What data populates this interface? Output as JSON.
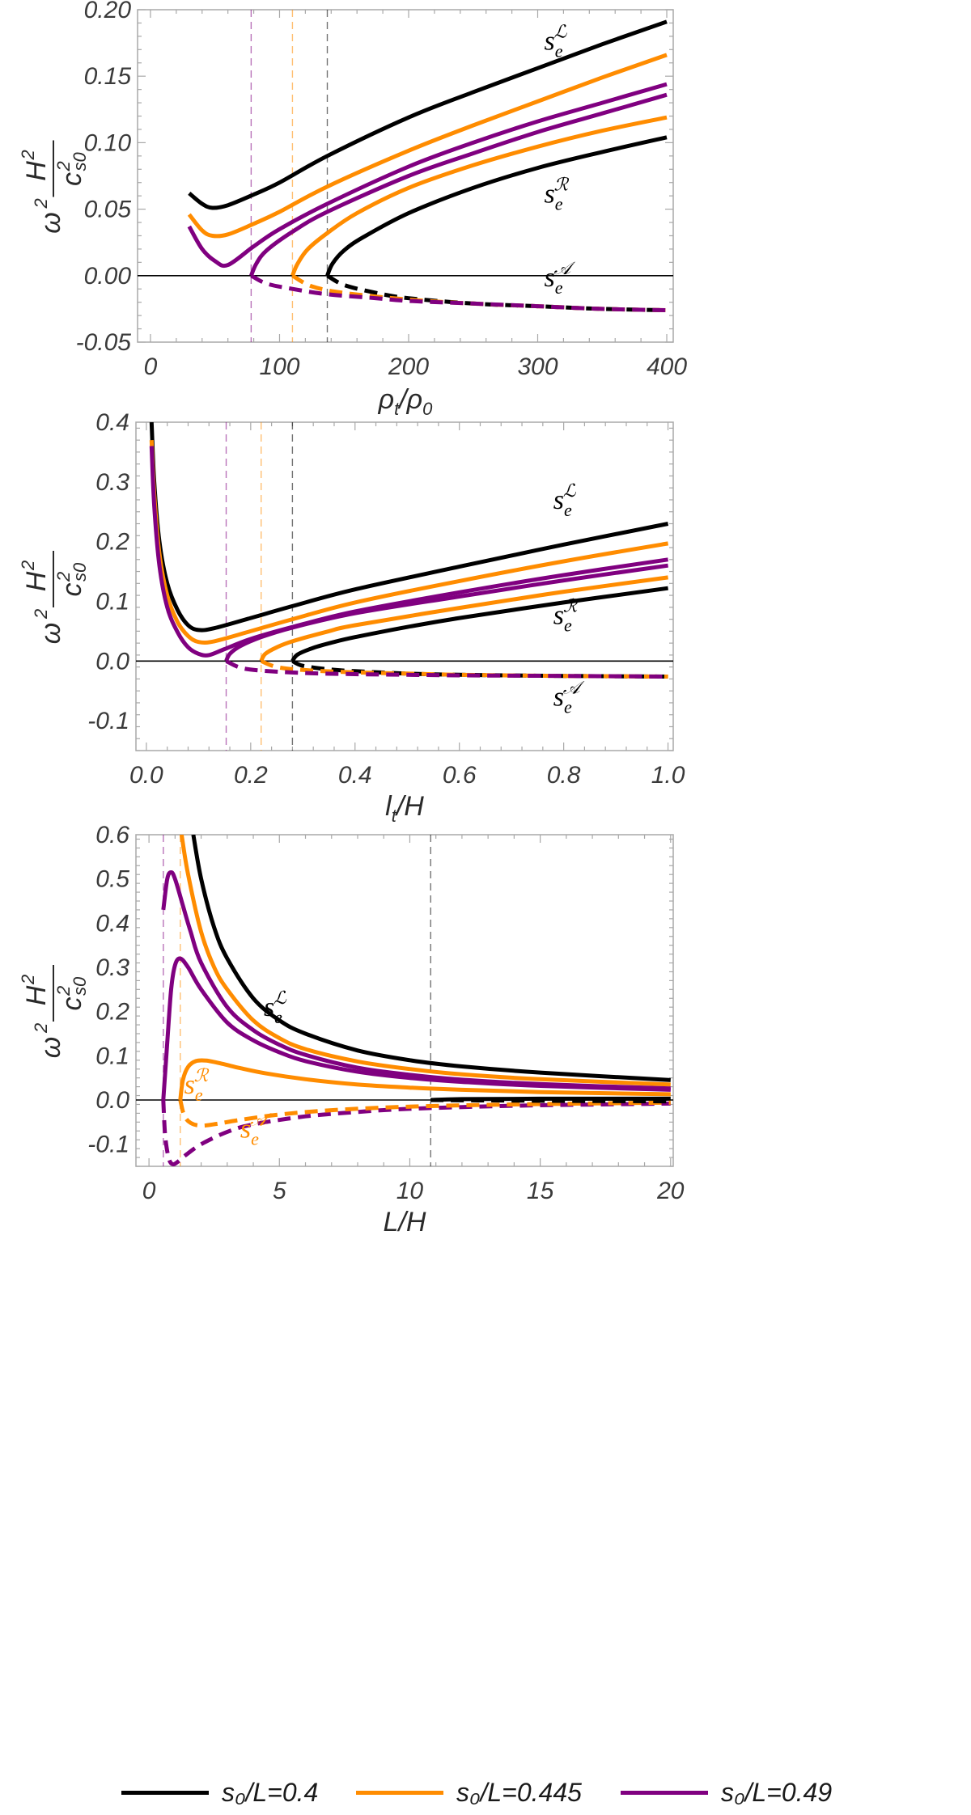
{
  "colors": {
    "black": "#000000",
    "orange": "#ff8c00",
    "purple": "#800080",
    "frame": "#a8a8a8",
    "text": "#333333"
  },
  "legend": [
    {
      "label": "s₀/L=0.4",
      "color": "#000000"
    },
    {
      "label": "s₀/L=0.445",
      "color": "#ff8c00"
    },
    {
      "label": "s₀/L=0.49",
      "color": "#800080"
    }
  ],
  "chart_data": [
    {
      "type": "line",
      "title": "",
      "xlabel": "ρt/ρ0",
      "ylabel": "ω² H²/c²s0",
      "xlim": [
        -10,
        405
      ],
      "ylim": [
        -0.05,
        0.2
      ],
      "xticks": [
        0,
        100,
        200,
        300,
        400
      ],
      "xtick_labels": [
        "0",
        "100",
        "200",
        "300",
        "400"
      ],
      "yticks": [
        -0.05,
        0,
        0.05,
        0.1,
        0.15,
        0.2
      ],
      "ytick_labels": [
        "-0.05",
        "0.00",
        "0.05",
        "0.10",
        "0.15",
        "0.20"
      ],
      "hline": 0,
      "vlines": [
        {
          "x": 137,
          "color": "#000000"
        },
        {
          "x": 110,
          "color": "#ff8c00"
        },
        {
          "x": 78,
          "color": "#800080"
        }
      ],
      "series": [
        {
          "name": "sL s0/L=0.4",
          "color": "#000000",
          "dashed": false,
          "x": [
            30,
            40,
            48,
            60,
            80,
            100,
            137,
            200,
            250,
            300,
            350,
            400
          ],
          "y": [
            0.062,
            0.054,
            0.051,
            0.053,
            0.061,
            0.07,
            0.09,
            0.119,
            0.138,
            0.156,
            0.174,
            0.191
          ]
        },
        {
          "name": "sL s0/L=0.445",
          "color": "#ff8c00",
          "dashed": false,
          "x": [
            30,
            40,
            48,
            60,
            80,
            100,
            137,
            200,
            250,
            300,
            350,
            400
          ],
          "y": [
            0.046,
            0.034,
            0.03,
            0.031,
            0.039,
            0.048,
            0.067,
            0.094,
            0.113,
            0.131,
            0.149,
            0.166
          ]
        },
        {
          "name": "sL s0/L=0.49",
          "color": "#800080",
          "dashed": false,
          "x": [
            30,
            40,
            50,
            60,
            80,
            100,
            137,
            200,
            250,
            300,
            350,
            400
          ],
          "y": [
            0.037,
            0.02,
            0.011,
            0.008,
            0.022,
            0.035,
            0.054,
            0.082,
            0.1,
            0.116,
            0.13,
            0.144
          ]
        },
        {
          "name": "sR s0/L=0.49",
          "color": "#800080",
          "dashed": false,
          "x": [
            78,
            82,
            90,
            110,
            137,
            200,
            250,
            300,
            350,
            400
          ],
          "y": [
            0.0,
            0.009,
            0.019,
            0.033,
            0.048,
            0.075,
            0.092,
            0.108,
            0.122,
            0.136
          ]
        },
        {
          "name": "sR s0/L=0.445",
          "color": "#ff8c00",
          "dashed": false,
          "x": [
            110,
            114,
            122,
            137,
            160,
            200,
            250,
            300,
            350,
            400
          ],
          "y": [
            0.0,
            0.009,
            0.02,
            0.032,
            0.047,
            0.066,
            0.083,
            0.097,
            0.109,
            0.119
          ]
        },
        {
          "name": "sR s0/L=0.4",
          "color": "#000000",
          "dashed": false,
          "x": [
            137,
            141,
            150,
            165,
            200,
            250,
            300,
            350,
            400
          ],
          "y": [
            0.0,
            0.009,
            0.019,
            0.029,
            0.047,
            0.066,
            0.081,
            0.093,
            0.104
          ]
        },
        {
          "name": "sA s0/L=0.4",
          "color": "#000000",
          "dashed": true,
          "x": [
            137,
            150,
            175,
            200,
            250,
            300,
            350,
            400
          ],
          "y": [
            0.0,
            -0.007,
            -0.013,
            -0.017,
            -0.021,
            -0.023,
            -0.025,
            -0.026
          ]
        },
        {
          "name": "sA s0/L=0.445",
          "color": "#ff8c00",
          "dashed": true,
          "x": [
            110,
            125,
            150,
            200,
            250,
            300,
            350,
            400
          ],
          "y": [
            0.0,
            -0.008,
            -0.013,
            -0.018,
            -0.021,
            -0.023,
            -0.025,
            -0.026
          ]
        },
        {
          "name": "sA s0/L=0.49",
          "color": "#800080",
          "dashed": true,
          "x": [
            78,
            90,
            110,
            137,
            175,
            200,
            250,
            300,
            350,
            400
          ],
          "y": [
            0.0,
            -0.006,
            -0.01,
            -0.014,
            -0.017,
            -0.019,
            -0.021,
            -0.023,
            -0.025,
            -0.026
          ]
        }
      ],
      "annotations": [
        {
          "text": "s",
          "sub": "e",
          "sup": "ℒ",
          "x": 305,
          "y": 0.17,
          "color": "#000000"
        },
        {
          "text": "s",
          "sub": "e",
          "sup": "ℛ",
          "x": 305,
          "y": 0.055,
          "color": "#000000"
        },
        {
          "text": "s",
          "sub": "e",
          "sup": "𝒜",
          "x": 305,
          "y": -0.008,
          "color": "#000000"
        }
      ]
    },
    {
      "type": "line",
      "title": "",
      "xlabel": "lt/H",
      "ylabel": "ω² H²/c²s0",
      "xlim": [
        -0.02,
        1.01
      ],
      "ylim": [
        -0.15,
        0.4
      ],
      "xticks": [
        0,
        0.2,
        0.4,
        0.6,
        0.8,
        1.0
      ],
      "xtick_labels": [
        "0.0",
        "0.2",
        "0.4",
        "0.6",
        "0.8",
        "1.0"
      ],
      "yticks": [
        -0.1,
        0,
        0.1,
        0.2,
        0.3,
        0.4
      ],
      "ytick_labels": [
        "-0.1",
        "0.0",
        "0.1",
        "0.2",
        "0.3",
        "0.4"
      ],
      "hline": 0,
      "vlines": [
        {
          "x": 0.28,
          "color": "#000000"
        },
        {
          "x": 0.22,
          "color": "#ff8c00"
        },
        {
          "x": 0.153,
          "color": "#800080"
        }
      ],
      "series": [
        {
          "name": "sL s0/L=0.4",
          "color": "#000000",
          "dashed": false,
          "x": [
            0.01,
            0.015,
            0.025,
            0.04,
            0.06,
            0.08,
            0.1,
            0.13,
            0.2,
            0.28,
            0.4,
            0.6,
            0.8,
            1.0
          ],
          "y": [
            0.4,
            0.3,
            0.2,
            0.13,
            0.085,
            0.06,
            0.052,
            0.055,
            0.072,
            0.092,
            0.12,
            0.158,
            0.195,
            0.23
          ]
        },
        {
          "name": "sL s0/L=0.445",
          "color": "#ff8c00",
          "dashed": false,
          "x": [
            0.01,
            0.015,
            0.025,
            0.04,
            0.06,
            0.08,
            0.1,
            0.13,
            0.2,
            0.28,
            0.4,
            0.6,
            0.8,
            1.0
          ],
          "y": [
            0.37,
            0.28,
            0.18,
            0.11,
            0.065,
            0.042,
            0.032,
            0.033,
            0.05,
            0.07,
            0.098,
            0.134,
            0.167,
            0.197
          ]
        },
        {
          "name": "sL s0/L=0.49",
          "color": "#800080",
          "dashed": false,
          "x": [
            0.01,
            0.015,
            0.025,
            0.04,
            0.06,
            0.08,
            0.1,
            0.12,
            0.15,
            0.2,
            0.28,
            0.4,
            0.6,
            0.8,
            1.0
          ],
          "y": [
            0.36,
            0.26,
            0.16,
            0.09,
            0.048,
            0.023,
            0.012,
            0.01,
            0.02,
            0.037,
            0.057,
            0.083,
            0.115,
            0.144,
            0.17
          ]
        },
        {
          "name": "sR s0/L=0.49",
          "color": "#800080",
          "dashed": false,
          "x": [
            0.153,
            0.16,
            0.18,
            0.22,
            0.28,
            0.4,
            0.6,
            0.8,
            1.0
          ],
          "y": [
            0.0,
            0.012,
            0.025,
            0.04,
            0.056,
            0.08,
            0.108,
            0.135,
            0.16
          ]
        },
        {
          "name": "sR s0/L=0.445",
          "color": "#ff8c00",
          "dashed": false,
          "x": [
            0.22,
            0.228,
            0.25,
            0.28,
            0.35,
            0.4,
            0.6,
            0.8,
            1.0
          ],
          "y": [
            0.0,
            0.012,
            0.023,
            0.033,
            0.05,
            0.06,
            0.089,
            0.116,
            0.14
          ]
        },
        {
          "name": "sR s0/L=0.4",
          "color": "#000000",
          "dashed": false,
          "x": [
            0.28,
            0.29,
            0.32,
            0.36,
            0.4,
            0.5,
            0.6,
            0.8,
            1.0
          ],
          "y": [
            0.0,
            0.011,
            0.022,
            0.032,
            0.04,
            0.057,
            0.072,
            0.098,
            0.122
          ]
        },
        {
          "name": "sA s0/L=0.4",
          "color": "#000000",
          "dashed": true,
          "x": [
            0.28,
            0.3,
            0.35,
            0.4,
            0.5,
            0.6,
            0.8,
            1.0
          ],
          "y": [
            0.0,
            -0.008,
            -0.014,
            -0.017,
            -0.021,
            -0.023,
            -0.025,
            -0.026
          ]
        },
        {
          "name": "sA s0/L=0.445",
          "color": "#ff8c00",
          "dashed": true,
          "x": [
            0.22,
            0.25,
            0.3,
            0.4,
            0.5,
            0.6,
            0.8,
            1.0
          ],
          "y": [
            0.0,
            -0.01,
            -0.015,
            -0.019,
            -0.021,
            -0.023,
            -0.025,
            -0.026
          ]
        },
        {
          "name": "sA s0/L=0.49",
          "color": "#800080",
          "dashed": true,
          "x": [
            0.153,
            0.18,
            0.22,
            0.3,
            0.4,
            0.5,
            0.6,
            0.8,
            1.0
          ],
          "y": [
            0.0,
            -0.011,
            -0.016,
            -0.02,
            -0.022,
            -0.023,
            -0.024,
            -0.025,
            -0.026
          ]
        }
      ],
      "annotations": [
        {
          "text": "s",
          "sub": "e",
          "sup": "ℒ",
          "x": 0.78,
          "y": 0.255,
          "color": "#000000"
        },
        {
          "text": "s",
          "sub": "e",
          "sup": "ℛ",
          "x": 0.78,
          "y": 0.062,
          "color": "#000000"
        },
        {
          "text": "s",
          "sub": "e",
          "sup": "𝒜",
          "x": 0.78,
          "y": -0.075,
          "color": "#000000"
        }
      ]
    },
    {
      "type": "line",
      "title": "",
      "xlabel": "L/H",
      "ylabel": "ω² H²/c²s0",
      "xlim": [
        -0.5,
        20.1
      ],
      "ylim": [
        -0.15,
        0.6
      ],
      "xticks": [
        0,
        5,
        10,
        15,
        20
      ],
      "xtick_labels": [
        "0",
        "5",
        "10",
        "15",
        "20"
      ],
      "yticks": [
        -0.1,
        0,
        0.1,
        0.2,
        0.3,
        0.4,
        0.5,
        0.6
      ],
      "ytick_labels": [
        "-0.1",
        "0.0",
        "0.1",
        "0.2",
        "0.3",
        "0.4",
        "0.5",
        "0.6"
      ],
      "hline": 0,
      "vlines": [
        {
          "x": 10.8,
          "color": "#000000"
        },
        {
          "x": 1.2,
          "color": "#ff8c00"
        },
        {
          "x": 0.55,
          "color": "#800080"
        }
      ],
      "series": [
        {
          "name": "sL s0/L=0.4",
          "color": "#000000",
          "dashed": false,
          "x": [
            1.7,
            2,
            2.5,
            3,
            4,
            5,
            6,
            8,
            10,
            12,
            15,
            20
          ],
          "y": [
            0.6,
            0.5,
            0.39,
            0.32,
            0.23,
            0.18,
            0.15,
            0.112,
            0.09,
            0.076,
            0.062,
            0.045
          ]
        },
        {
          "name": "sL s0/L=0.445",
          "color": "#ff8c00",
          "dashed": false,
          "x": [
            1.25,
            1.5,
            2,
            2.5,
            3,
            4,
            5,
            6,
            8,
            10,
            12,
            15,
            20
          ],
          "y": [
            0.6,
            0.51,
            0.38,
            0.3,
            0.25,
            0.18,
            0.14,
            0.115,
            0.087,
            0.07,
            0.058,
            0.047,
            0.035
          ]
        },
        {
          "name": "sL s0/L=0.49 upper",
          "color": "#800080",
          "dashed": false,
          "x": [
            0.55,
            0.7,
            0.85,
            1.0,
            1.3,
            1.6,
            2,
            3,
            4,
            5,
            6,
            8,
            10,
            12,
            15,
            20
          ],
          "y": [
            0.43,
            0.5,
            0.515,
            0.5,
            0.44,
            0.38,
            0.31,
            0.21,
            0.158,
            0.125,
            0.102,
            0.073,
            0.057,
            0.046,
            0.036,
            0.026
          ]
        },
        {
          "name": "sL s0/L=0.49 lower",
          "color": "#800080",
          "dashed": false,
          "x": [
            0.55,
            0.7,
            0.85,
            1.0,
            1.2,
            1.5,
            2,
            3,
            4,
            5,
            6,
            8,
            10,
            12,
            15,
            20
          ],
          "y": [
            0.0,
            0.13,
            0.25,
            0.305,
            0.32,
            0.3,
            0.25,
            0.175,
            0.135,
            0.108,
            0.088,
            0.064,
            0.05,
            0.041,
            0.032,
            0.023
          ]
        },
        {
          "name": "sR s0/L=0.445",
          "color": "#ff8c00",
          "dashed": false,
          "x": [
            1.2,
            1.3,
            1.5,
            1.8,
            2.2,
            2.8,
            3.5,
            4.5,
            6,
            8,
            10,
            12,
            15,
            20
          ],
          "y": [
            0.0,
            0.045,
            0.075,
            0.088,
            0.089,
            0.082,
            0.072,
            0.06,
            0.047,
            0.035,
            0.028,
            0.023,
            0.018,
            0.013
          ]
        },
        {
          "name": "sR s0/L=0.4",
          "color": "#000000",
          "dashed": false,
          "x": [
            10.8,
            12,
            15,
            20
          ],
          "y": [
            0.0,
            0.002,
            0.003,
            0.003
          ]
        },
        {
          "name": "sA s0/L=0.49",
          "color": "#800080",
          "dashed": true,
          "x": [
            0.55,
            0.62,
            0.75,
            0.9,
            1.1,
            1.4,
            2,
            3,
            4,
            6,
            8,
            10,
            14,
            20
          ],
          "y": [
            0.0,
            -0.08,
            -0.13,
            -0.145,
            -0.14,
            -0.125,
            -0.1,
            -0.072,
            -0.055,
            -0.037,
            -0.027,
            -0.02,
            -0.013,
            -0.008
          ]
        },
        {
          "name": "sA s0/L=0.445",
          "color": "#ff8c00",
          "dashed": true,
          "x": [
            1.2,
            1.35,
            1.6,
            2,
            2.6,
            3.5,
            5,
            7,
            10,
            14,
            20
          ],
          "y": [
            0.0,
            -0.035,
            -0.052,
            -0.058,
            -0.054,
            -0.045,
            -0.033,
            -0.023,
            -0.015,
            -0.01,
            -0.006
          ]
        },
        {
          "name": "sA s0/L=0.4",
          "color": "#000000",
          "dashed": true,
          "x": [
            10.8,
            13,
            16,
            20
          ],
          "y": [
            0.0,
            -0.001,
            -0.002,
            -0.003
          ]
        }
      ],
      "annotations": [
        {
          "text": "s",
          "sub": "e",
          "sup": "ℒ",
          "x": 4.4,
          "y": 0.19,
          "color": "#000000"
        },
        {
          "text": "s",
          "sub": "e",
          "sup": "ℛ",
          "x": 1.35,
          "y": 0.015,
          "color": "#ff8c00"
        },
        {
          "text": "s",
          "sub": "e",
          "sup": "𝒜",
          "x": 3.5,
          "y": -0.085,
          "color": "#ff8c00"
        }
      ]
    }
  ]
}
